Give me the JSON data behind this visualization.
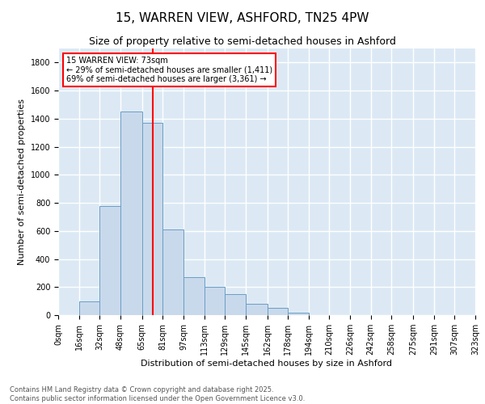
{
  "title": "15, WARREN VIEW, ASHFORD, TN25 4PW",
  "subtitle": "Size of property relative to semi-detached houses in Ashford",
  "xlabel": "Distribution of semi-detached houses by size in Ashford",
  "ylabel": "Number of semi-detached properties",
  "bar_color": "#c9d9ec",
  "bar_edge_color": "#6a9ec4",
  "background_color": "#dce9f5",
  "grid_color": "#ffffff",
  "red_line_x": 73,
  "annotation_title": "15 WARREN VIEW: 73sqm",
  "annotation_line1": "← 29% of semi-detached houses are smaller (1,411)",
  "annotation_line2": "69% of semi-detached houses are larger (3,361) →",
  "bin_edges": [
    0,
    16,
    32,
    48,
    65,
    81,
    97,
    113,
    129,
    145,
    162,
    178,
    194,
    210,
    226,
    242,
    258,
    275,
    291,
    307,
    323
  ],
  "bin_labels": [
    "0sqm",
    "16sqm",
    "32sqm",
    "48sqm",
    "65sqm",
    "81sqm",
    "97sqm",
    "113sqm",
    "129sqm",
    "145sqm",
    "162sqm",
    "178sqm",
    "194sqm",
    "210sqm",
    "226sqm",
    "242sqm",
    "258sqm",
    "275sqm",
    "291sqm",
    "307sqm",
    "323sqm"
  ],
  "bar_heights": [
    0,
    100,
    780,
    1450,
    1370,
    610,
    270,
    200,
    150,
    80,
    50,
    20,
    0,
    0,
    0,
    0,
    0,
    0,
    0,
    0
  ],
  "ylim": [
    0,
    1900
  ],
  "yticks": [
    0,
    200,
    400,
    600,
    800,
    1000,
    1200,
    1400,
    1600,
    1800
  ],
  "footer_line1": "Contains HM Land Registry data © Crown copyright and database right 2025.",
  "footer_line2": "Contains public sector information licensed under the Open Government Licence v3.0.",
  "title_fontsize": 11,
  "subtitle_fontsize": 9,
  "axis_label_fontsize": 8,
  "tick_fontsize": 7,
  "footer_fontsize": 6
}
